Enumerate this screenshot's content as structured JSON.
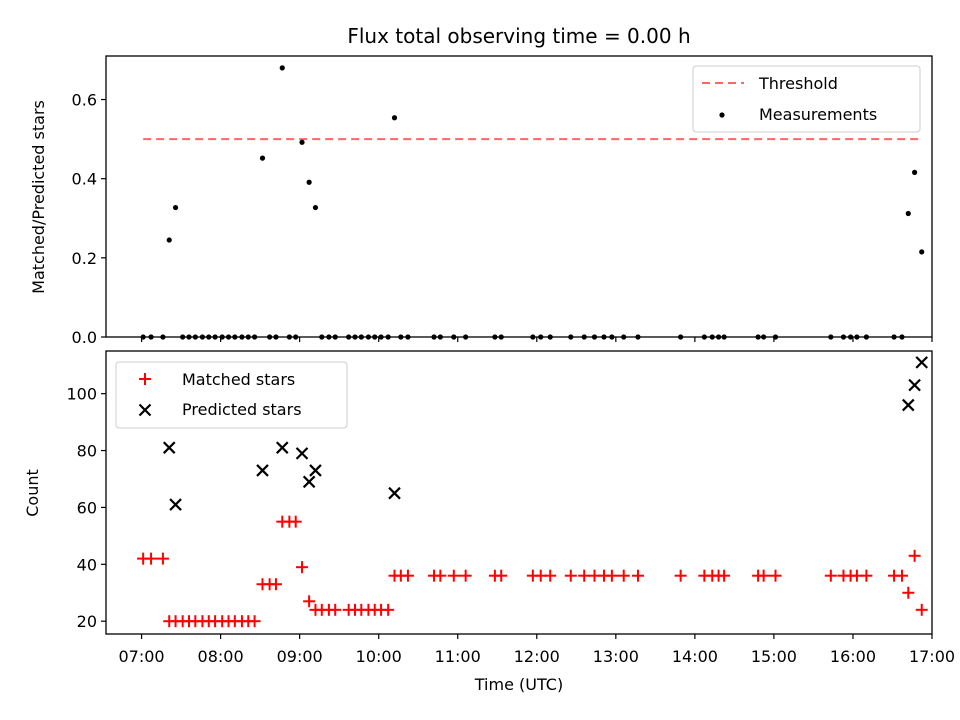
{
  "chart_data": [
    {
      "type": "scatter",
      "title": "Flux total observing time = 0.00 h",
      "xlabel": "",
      "ylabel": "Matched/Predicted stars",
      "xlim_hours": [
        6.55,
        17.0
      ],
      "ylim": [
        0.0,
        0.71
      ],
      "yticks": [
        0.0,
        0.2,
        0.4,
        0.6
      ],
      "ytick_labels": [
        "0.0",
        "0.2",
        "0.4",
        "0.6"
      ],
      "grid": false,
      "legend_position": "top-right",
      "threshold": {
        "name": "Threshold",
        "value": 0.5,
        "x_range_hours": [
          7.02,
          16.87
        ],
        "color": "#ff6666"
      },
      "series": [
        {
          "name": "Measurements",
          "color": "#000000",
          "marker": "dot",
          "x_hours": [
            7.02,
            7.12,
            7.27,
            7.35,
            7.43,
            7.52,
            7.6,
            7.68,
            7.77,
            7.85,
            7.93,
            8.02,
            8.1,
            8.18,
            8.27,
            8.35,
            8.43,
            8.53,
            8.62,
            8.7,
            8.78,
            8.87,
            8.95,
            9.03,
            9.12,
            9.2,
            9.28,
            9.37,
            9.45,
            9.62,
            9.7,
            9.78,
            9.87,
            9.95,
            10.03,
            10.12,
            10.2,
            10.28,
            10.37,
            10.7,
            10.78,
            10.95,
            11.1,
            11.47,
            11.55,
            11.95,
            12.05,
            12.17,
            12.43,
            12.6,
            12.73,
            12.85,
            12.95,
            13.1,
            13.28,
            13.82,
            14.12,
            14.22,
            14.3,
            14.37,
            14.8,
            14.87,
            15.02,
            15.72,
            15.88,
            15.97,
            16.05,
            16.17,
            16.52,
            16.62,
            16.7,
            16.78,
            16.87
          ],
          "y": [
            0.0,
            0.0,
            0.0,
            0.245,
            0.327,
            0.0,
            0.0,
            0.0,
            0.0,
            0.0,
            0.0,
            0.0,
            0.0,
            0.0,
            0.0,
            0.0,
            0.0,
            0.452,
            0.0,
            0.0,
            0.68,
            0.0,
            0.0,
            0.492,
            0.391,
            0.327,
            0.0,
            0.0,
            0.0,
            0.0,
            0.0,
            0.0,
            0.0,
            0.0,
            0.0,
            0.0,
            0.554,
            0.0,
            0.0,
            0.0,
            0.0,
            0.0,
            0.0,
            0.0,
            0.0,
            0.0,
            0.0,
            0.0,
            0.0,
            0.0,
            0.0,
            0.0,
            0.0,
            0.0,
            0.0,
            0.0,
            0.0,
            0.0,
            0.0,
            0.0,
            0.0,
            0.0,
            0.0,
            0.0,
            0.0,
            0.0,
            0.0,
            0.0,
            0.0,
            0.0,
            0.312,
            0.416,
            0.215
          ]
        }
      ]
    },
    {
      "type": "scatter",
      "xlabel": "Time (UTC)",
      "ylabel": "Count",
      "xlim_hours": [
        6.55,
        17.0
      ],
      "ylim": [
        15.5,
        115
      ],
      "yticks": [
        20,
        40,
        60,
        80,
        100
      ],
      "ytick_labels": [
        "20",
        "40",
        "60",
        "80",
        "100"
      ],
      "xticks_hours": [
        7,
        8,
        9,
        10,
        11,
        12,
        13,
        14,
        15,
        16,
        17
      ],
      "xtick_labels": [
        "07:00",
        "08:00",
        "09:00",
        "10:00",
        "11:00",
        "12:00",
        "13:00",
        "14:00",
        "15:00",
        "16:00",
        "17:00"
      ],
      "grid": false,
      "legend_position": "top-left",
      "series": [
        {
          "name": "Matched stars",
          "color": "#ff0000",
          "marker": "plus",
          "x_hours": [
            7.02,
            7.12,
            7.27,
            7.35,
            7.43,
            7.52,
            7.6,
            7.68,
            7.77,
            7.85,
            7.93,
            8.02,
            8.1,
            8.18,
            8.27,
            8.35,
            8.43,
            8.53,
            8.62,
            8.7,
            8.78,
            8.87,
            8.95,
            9.03,
            9.12,
            9.2,
            9.28,
            9.37,
            9.45,
            9.62,
            9.7,
            9.78,
            9.87,
            9.95,
            10.03,
            10.12,
            10.2,
            10.28,
            10.37,
            10.7,
            10.78,
            10.95,
            11.1,
            11.47,
            11.55,
            11.95,
            12.05,
            12.17,
            12.43,
            12.6,
            12.73,
            12.85,
            12.95,
            13.1,
            13.28,
            13.82,
            14.12,
            14.22,
            14.3,
            14.37,
            14.8,
            14.87,
            15.02,
            15.72,
            15.88,
            15.97,
            16.05,
            16.17,
            16.52,
            16.62,
            16.7,
            16.78,
            16.87
          ],
          "y": [
            42,
            42,
            42,
            20,
            20,
            20,
            20,
            20,
            20,
            20,
            20,
            20,
            20,
            20,
            20,
            20,
            20,
            33,
            33,
            33,
            55,
            55,
            55,
            39,
            27,
            24,
            24,
            24,
            24,
            24,
            24,
            24,
            24,
            24,
            24,
            24,
            36,
            36,
            36,
            36,
            36,
            36,
            36,
            36,
            36,
            36,
            36,
            36,
            36,
            36,
            36,
            36,
            36,
            36,
            36,
            36,
            36,
            36,
            36,
            36,
            36,
            36,
            36,
            36,
            36,
            36,
            36,
            36,
            36,
            36,
            30,
            43,
            24
          ]
        },
        {
          "name": "Predicted stars",
          "color": "#000000",
          "marker": "x",
          "x_hours": [
            7.35,
            7.43,
            8.53,
            8.78,
            9.03,
            9.12,
            9.2,
            10.2,
            16.7,
            16.78,
            16.87
          ],
          "y": [
            81,
            61,
            73,
            81,
            79,
            69,
            73,
            65,
            96,
            103,
            111
          ]
        }
      ]
    }
  ]
}
